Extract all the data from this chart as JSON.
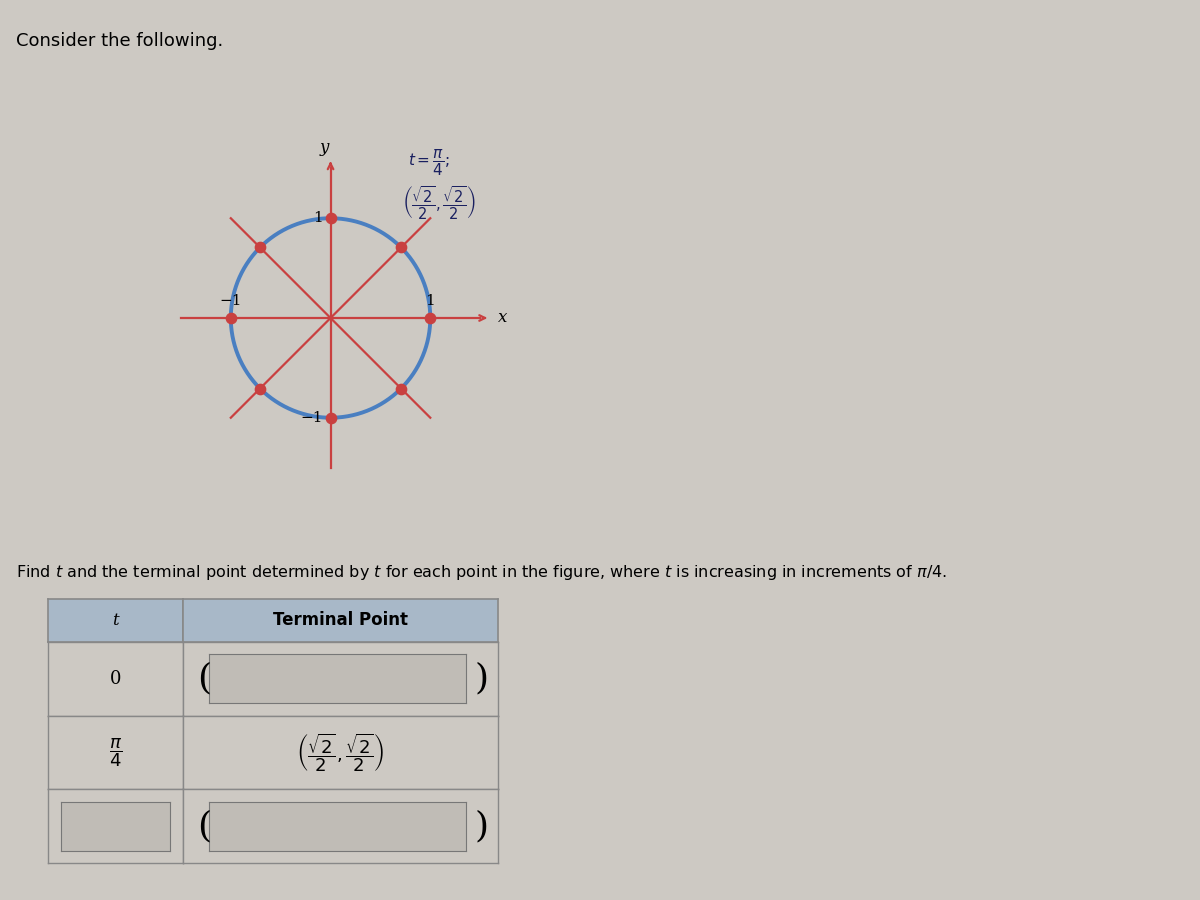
{
  "bg_color": "#cdc9c3",
  "title_text": "Consider the following.",
  "title_fontsize": 13,
  "circle_color": "#4a7fc1",
  "circle_linewidth": 2.8,
  "line_color": "#c94040",
  "line_width": 1.6,
  "dot_color": "#c94040",
  "dot_size": 55,
  "y_label": "y",
  "x_label": "x",
  "desc_text": "Find $t$ and the terminal point determined by $t$ for each point in the figure, where $t$ is increasing in increments of $\\pi/4$.",
  "desc_fontsize": 11.5,
  "table_header_bg": "#a8b8c8",
  "table_row_bg": "#cdc9c3",
  "table_input_bg": "#c0bcb6",
  "table_border": "#888888",
  "header_t": "t",
  "header_tp": "Terminal Point",
  "black_bar_color": "#1a1a1a",
  "annotation_color": "#1a2060"
}
